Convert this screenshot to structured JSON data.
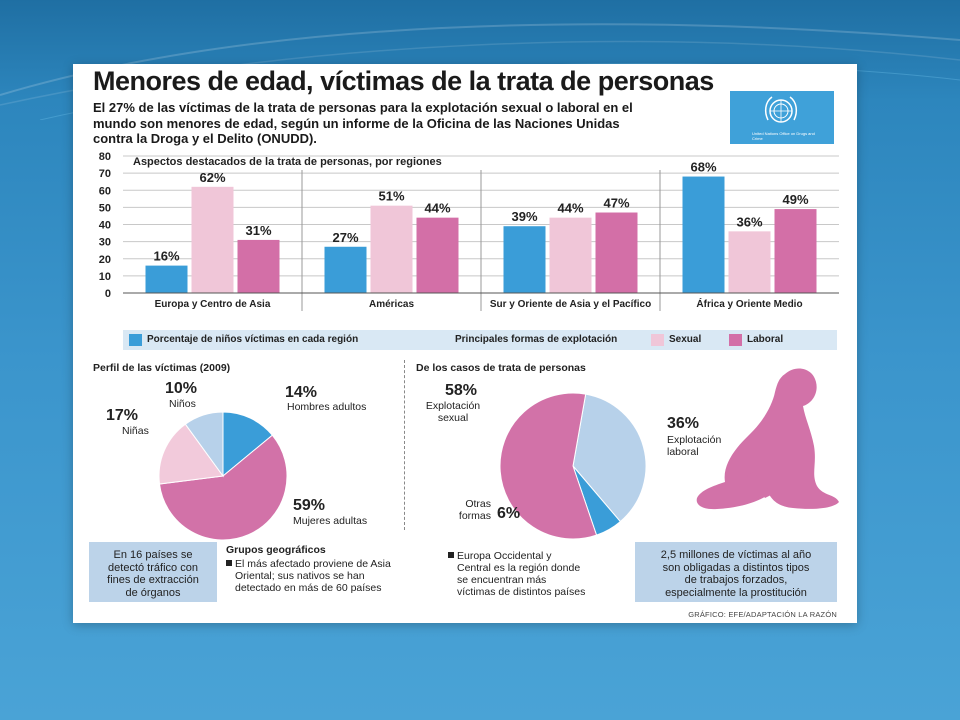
{
  "title": "Menores de edad, víctimas de la trata de personas",
  "subtitle": "El 27% de las víctimas de la trata de personas para la explotación sexual o laboral en el mundo son menores de edad, según un informe de la Oficina de las Naciones Unidas contra la Droga y el Delito (ONUDD).",
  "logo_text": "United Nations Office on Drugs and Crime",
  "colors": {
    "children": "#3a9dd8",
    "sexual": "#f0c6d8",
    "labor": "#d36fa7",
    "pink": "#d272a8",
    "pale_blue": "#b7d1ea",
    "box_blue": "#bcd3e9"
  },
  "chart_data": [
    {
      "type": "bar",
      "title": "Aspectos destacados de la trata de personas, por regiones",
      "categories": [
        "Europa y Centro de Asia",
        "Américas",
        "Sur y Oriente de Asia y el Pacífico",
        "África y Oriente Medio"
      ],
      "series": [
        {
          "name": "Porcentaje de niños víctimas en cada región",
          "values": [
            16,
            27,
            39,
            68
          ],
          "color": "#3a9dd8",
          "labels": [
            "16%",
            "27%",
            "39%",
            "68%"
          ]
        },
        {
          "name": "Sexual",
          "values": [
            62,
            51,
            44,
            36
          ],
          "color": "#f0c6d8",
          "labels": [
            "62%",
            "51%",
            "44%",
            "36%"
          ]
        },
        {
          "name": "Laboral",
          "values": [
            31,
            44,
            47,
            49
          ],
          "color": "#d36fa7",
          "labels": [
            "31%",
            "44%",
            "47%",
            "49%"
          ]
        }
      ],
      "yticks": [
        "0",
        "10",
        "20",
        "30",
        "40",
        "50",
        "60",
        "70",
        "80"
      ],
      "ylim": [
        0,
        80
      ],
      "grid": true
    },
    {
      "type": "pie",
      "title": "Perfil de las víctimas (2009)",
      "slices": [
        {
          "label": "Hombres adultos",
          "value": 14,
          "pct": "14%",
          "color": "#3a9dd8"
        },
        {
          "label": "Mujeres adultas",
          "value": 59,
          "pct": "59%",
          "color": "#d272a8"
        },
        {
          "label": "Niñas",
          "value": 17,
          "pct": "17%",
          "color": "#f2cadb"
        },
        {
          "label": "Niños",
          "value": 10,
          "pct": "10%",
          "color": "#b7d1ea"
        }
      ]
    },
    {
      "type": "pie",
      "title": "De los casos de trata de personas",
      "slices": [
        {
          "label": "Explotación laboral",
          "value": 36,
          "pct": "36%",
          "color": "#b7d1ea"
        },
        {
          "label": "Otras formas",
          "value": 6,
          "pct": "6%",
          "color": "#3a9dd8"
        },
        {
          "label": "Explotación sexual",
          "value": 58,
          "pct": "58%",
          "color": "#d272a8"
        }
      ]
    }
  ],
  "legend": {
    "children": "Porcentaje de niños víctimas en cada región",
    "principal": "Principales formas de explotación",
    "sexual": "Sexual",
    "labor": "Laboral"
  },
  "pie1_labels": {
    "ninos_pct": "10%",
    "ninos": "Niños",
    "hombres_pct": "14%",
    "hombres": "Hombres adultos",
    "ninas_pct": "17%",
    "ninas": "Niñas",
    "mujeres_pct": "59%",
    "mujeres": "Mujeres adultas"
  },
  "pie2_labels": {
    "sexual_pct": "58%",
    "sexual_1": "Explotación",
    "sexual_2": "sexual",
    "laboral_pct": "36%",
    "laboral_1": "Explotación",
    "laboral_2": "laboral",
    "otras_1": "Otras",
    "otras_2": "formas",
    "otras_pct": "6%"
  },
  "bottom": {
    "organs": [
      "En 16 países se",
      "detectó tráfico con",
      "fines de extracción",
      "de órganos"
    ],
    "geo_title": "Grupos geográficos",
    "geo_left": [
      "El más afectado proviene de Asia",
      "Oriental; sus nativos se han",
      "detectado en más de 60 países"
    ],
    "geo_right": [
      "Europa Occidental y",
      "Central es la región donde",
      "se encuentran más",
      "víctimas de distintos países"
    ],
    "forced": [
      "2,5 millones de víctimas al año",
      "son obligadas a distintos tipos",
      "de trabajos forzados,",
      "especialmente la prostitución"
    ]
  },
  "credit": "GRÁFICO: EFE/ADAPTACIÓN LA RAZÓN"
}
